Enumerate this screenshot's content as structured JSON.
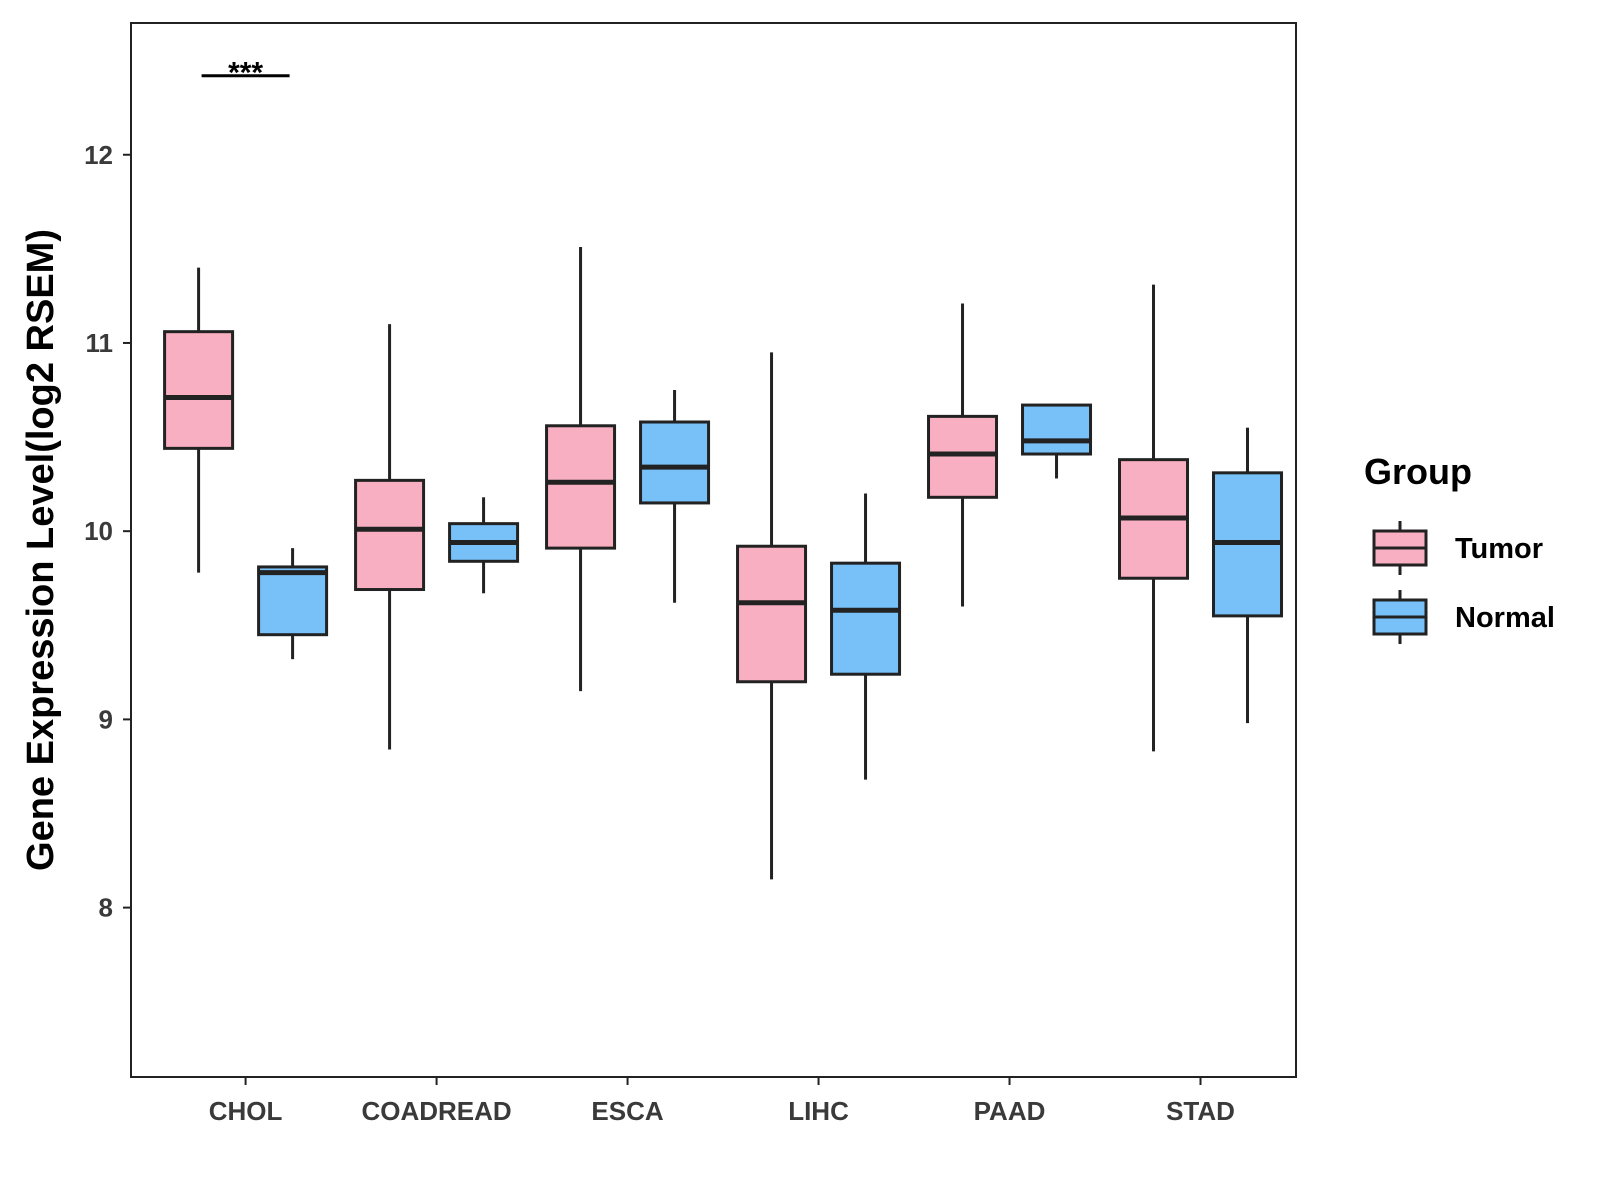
{
  "chart_data": {
    "type": "boxplot",
    "title": "",
    "xlabel": "",
    "ylabel": "Gene Expression Level(log2 RSEM)",
    "ylim": [
      7.1,
      12.7
    ],
    "yticks": [
      8,
      9,
      10,
      11,
      12
    ],
    "categories": [
      "CHOL",
      "COADREAD",
      "ESCA",
      "LIHC",
      "PAAD",
      "STAD"
    ],
    "legend": {
      "title": "Group",
      "position": "right",
      "entries": [
        "Tumor",
        "Normal"
      ]
    },
    "series": [
      {
        "name": "Tumor",
        "color": "#F9AFC2",
        "boxes": [
          {
            "min": 9.78,
            "q1": 10.44,
            "median": 10.71,
            "q3": 11.06,
            "max": 11.4
          },
          {
            "min": 8.84,
            "q1": 9.69,
            "median": 10.01,
            "q3": 10.27,
            "max": 11.1
          },
          {
            "min": 9.15,
            "q1": 9.91,
            "median": 10.26,
            "q3": 10.56,
            "max": 11.51
          },
          {
            "min": 8.15,
            "q1": 9.2,
            "median": 9.62,
            "q3": 9.92,
            "max": 10.95
          },
          {
            "min": 9.6,
            "q1": 10.18,
            "median": 10.41,
            "q3": 10.61,
            "max": 11.21
          },
          {
            "min": 8.83,
            "q1": 9.75,
            "median": 10.07,
            "q3": 10.38,
            "max": 11.31
          }
        ]
      },
      {
        "name": "Normal",
        "color": "#77C1F8",
        "boxes": [
          {
            "min": 9.32,
            "q1": 9.45,
            "median": 9.78,
            "q3": 9.81,
            "max": 9.91
          },
          {
            "min": 9.67,
            "q1": 9.84,
            "median": 9.94,
            "q3": 10.04,
            "max": 10.18
          },
          {
            "min": 9.62,
            "q1": 10.15,
            "median": 10.34,
            "q3": 10.58,
            "max": 10.75
          },
          {
            "min": 8.68,
            "q1": 9.24,
            "median": 9.58,
            "q3": 9.83,
            "max": 10.2
          },
          {
            "min": 10.28,
            "q1": 10.41,
            "median": 10.48,
            "q3": 10.67,
            "max": 10.67
          },
          {
            "min": 8.98,
            "q1": 9.55,
            "median": 9.94,
            "q3": 10.31,
            "max": 10.55
          }
        ]
      }
    ],
    "annotations": [
      {
        "category": "CHOL",
        "text": "***",
        "y": 12.42
      }
    ]
  }
}
